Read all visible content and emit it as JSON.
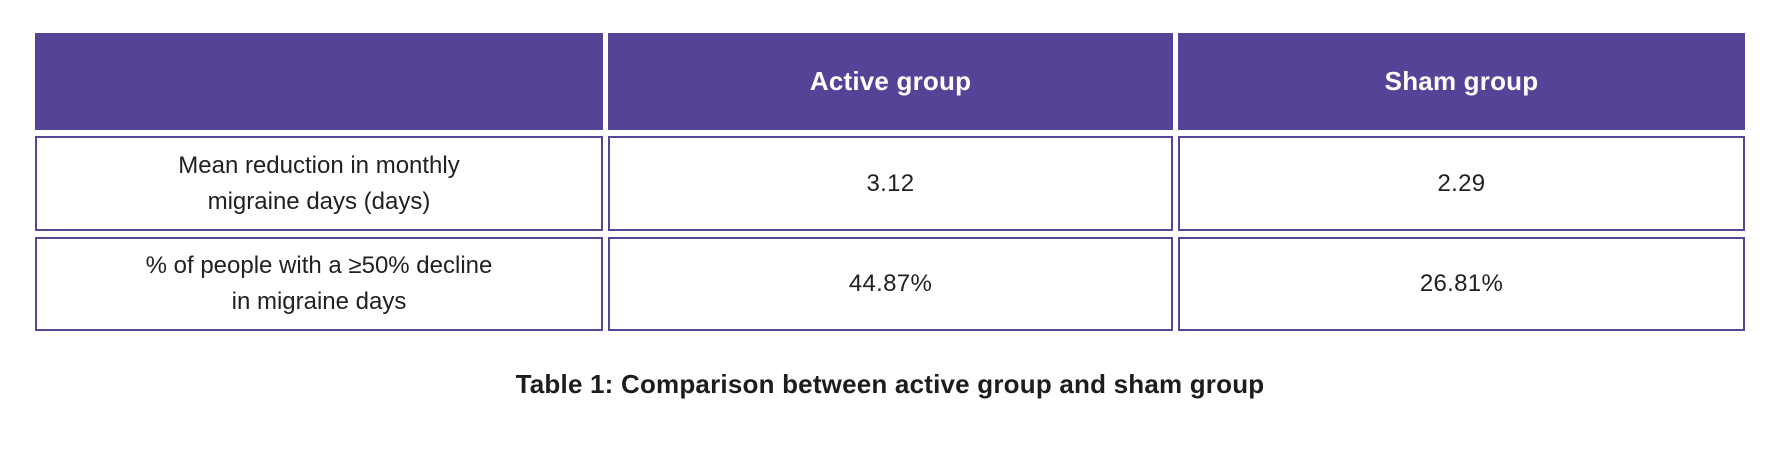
{
  "colors": {
    "header_bg": "#564397",
    "cell_border": "#524798",
    "header_text": "#ffffff",
    "body_text": "#212121"
  },
  "chart_data": {
    "type": "table",
    "title": "Table 1: Comparison between active group and sham group",
    "columns": [
      "",
      "Active group",
      "Sham group"
    ],
    "rows": [
      {
        "label": "Mean reduction in monthly migraine days (days)",
        "label_line1": "Mean reduction in monthly",
        "label_line2": "migraine days (days)",
        "active": "3.12",
        "sham": "2.29"
      },
      {
        "label": "% of people with a ≥50% decline in migraine days",
        "label_line1": "% of people with a ≥50% decline",
        "label_line2": "in migraine days",
        "active": "44.87%",
        "sham": "26.81%"
      }
    ]
  },
  "caption": "Table 1: Comparison between active group and sham group"
}
